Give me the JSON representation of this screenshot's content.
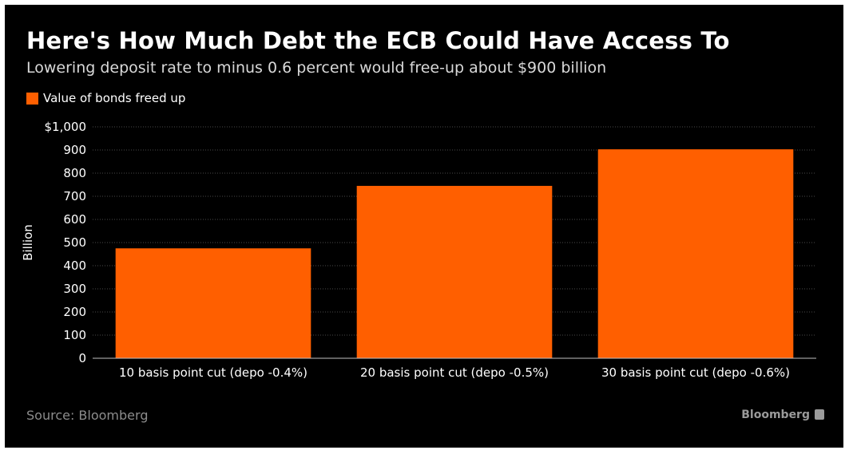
{
  "header": {
    "title": "Here's How Much Debt the ECB Could Have Access To",
    "subtitle": "Lowering deposit rate to minus 0.6 percent would free-up about $900 billion"
  },
  "legend": {
    "label": "Value of bonds freed up",
    "color": "#ff5f00"
  },
  "footer": {
    "source": "Source: Bloomberg",
    "brand": "Bloomberg"
  },
  "colors": {
    "background": "#000000",
    "bar": "#ff5f00",
    "grid": "#4a4a4a",
    "text": "#ffffff"
  },
  "chart_data": {
    "type": "bar",
    "categories": [
      "10 basis point cut (depo -0.4%)",
      "20 basis point cut (depo -0.5%)",
      "30 basis point cut (depo -0.6%)"
    ],
    "series": [
      {
        "name": "Value of bonds freed up",
        "values": [
          475,
          745,
          903
        ]
      }
    ],
    "ylabel": "Billion",
    "ylim": [
      0,
      1000
    ],
    "yticks": [
      0,
      100,
      200,
      300,
      400,
      500,
      600,
      700,
      800,
      900,
      1000
    ],
    "ytick_labels": [
      "0",
      "100",
      "200",
      "300",
      "400",
      "500",
      "600",
      "700",
      "800",
      "900",
      "$1,000"
    ],
    "grid": true,
    "legend_position": "top-left"
  }
}
